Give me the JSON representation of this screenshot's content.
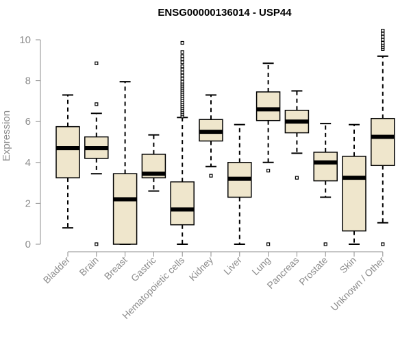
{
  "chart_data": {
    "type": "boxplot",
    "title": "ENSG00000136014 - USP44",
    "xlabel": "",
    "ylabel": "Expression",
    "ylim": [
      0,
      10
    ],
    "yticks": [
      0,
      2,
      4,
      6,
      8,
      10
    ],
    "grid": false,
    "box_fill": "#efe6cc",
    "categories": [
      "Bladder",
      "Brain",
      "Breast",
      "Gastric",
      "Hematopoietic cells",
      "Kidney",
      "Liver",
      "Lung",
      "Pancreas",
      "Prostate",
      "Skin",
      "Unknown / Other"
    ],
    "boxes": [
      {
        "whisker_low": 0.8,
        "q1": 3.25,
        "median": 4.7,
        "q3": 5.75,
        "whisker_high": 7.3,
        "outliers": []
      },
      {
        "whisker_low": 3.45,
        "q1": 4.2,
        "median": 4.7,
        "q3": 5.25,
        "whisker_high": 6.4,
        "outliers": [
          0.0,
          6.85,
          8.85
        ]
      },
      {
        "whisker_low": 0.0,
        "q1": 0.0,
        "median": 2.2,
        "q3": 3.45,
        "whisker_high": 7.95,
        "outliers": []
      },
      {
        "whisker_low": 2.6,
        "q1": 3.25,
        "median": 3.45,
        "q3": 4.4,
        "whisker_high": 5.35,
        "outliers": []
      },
      {
        "whisker_low": 0.0,
        "q1": 0.95,
        "median": 1.7,
        "q3": 3.05,
        "whisker_high": 6.2,
        "outliers": [
          6.25,
          6.35,
          6.45,
          6.55,
          6.65,
          6.75,
          6.85,
          6.95,
          7.05,
          7.15,
          7.25,
          7.35,
          7.45,
          7.55,
          7.65,
          7.75,
          7.85,
          7.95,
          8.1,
          8.25,
          8.4,
          8.55,
          8.7,
          8.9,
          9.05,
          9.2,
          9.4,
          9.85
        ]
      },
      {
        "whisker_low": 3.8,
        "q1": 5.05,
        "median": 5.5,
        "q3": 6.1,
        "whisker_high": 7.3,
        "outliers": [
          3.35
        ]
      },
      {
        "whisker_low": 0.0,
        "q1": 2.3,
        "median": 3.2,
        "q3": 4.0,
        "whisker_high": 5.85,
        "outliers": []
      },
      {
        "whisker_low": 4.0,
        "q1": 6.05,
        "median": 6.6,
        "q3": 7.45,
        "whisker_high": 8.85,
        "outliers": [
          0.0,
          3.6
        ]
      },
      {
        "whisker_low": 4.45,
        "q1": 5.45,
        "median": 6.0,
        "q3": 6.55,
        "whisker_high": 7.5,
        "outliers": [
          3.25
        ]
      },
      {
        "whisker_low": 2.3,
        "q1": 3.1,
        "median": 4.0,
        "q3": 4.5,
        "whisker_high": 5.9,
        "outliers": [
          0.0
        ]
      },
      {
        "whisker_low": 0.0,
        "q1": 0.65,
        "median": 3.25,
        "q3": 4.3,
        "whisker_high": 5.85,
        "outliers": []
      },
      {
        "whisker_low": 1.05,
        "q1": 3.85,
        "median": 5.25,
        "q3": 6.15,
        "whisker_high": 9.2,
        "outliers": [
          0.0,
          9.55,
          9.65,
          9.75,
          9.85,
          10.0,
          10.15,
          10.3,
          10.45
        ]
      }
    ]
  }
}
